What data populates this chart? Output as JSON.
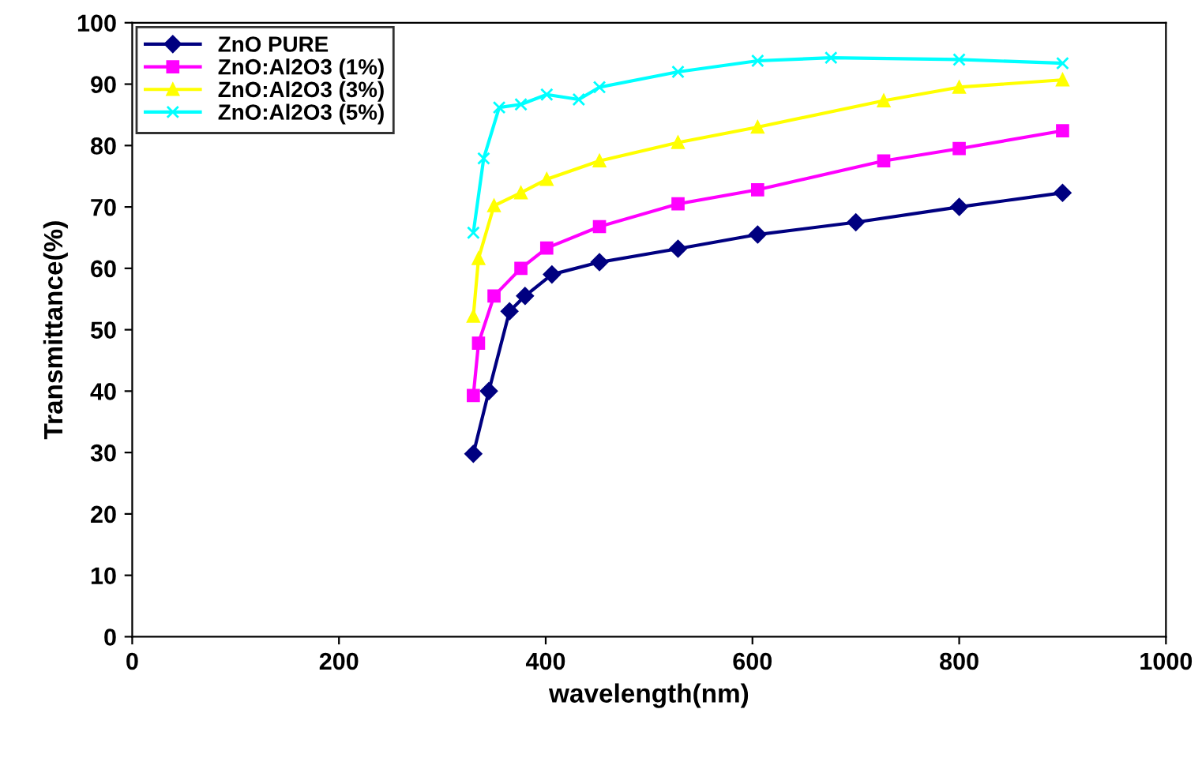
{
  "chart_data": {
    "type": "line",
    "xlabel": "wavelength(nm)",
    "ylabel": "Transmittance(%)",
    "xlim": [
      0,
      1000
    ],
    "xticks": [
      0,
      200,
      400,
      600,
      800,
      1000
    ],
    "ylim": [
      0,
      100
    ],
    "yticks": [
      0,
      10,
      20,
      30,
      40,
      50,
      60,
      70,
      80,
      90,
      100
    ],
    "grid": false,
    "legend": "top left",
    "series": [
      {
        "name": "ZnO PURE",
        "color": "#000080",
        "marker": "diamond",
        "x": [
          330,
          345,
          365,
          380,
          406,
          452,
          528,
          605,
          700,
          800,
          900
        ],
        "values": [
          29.8,
          40,
          53,
          55.5,
          59,
          61,
          63.2,
          65.5,
          67.5,
          70,
          72.3
        ]
      },
      {
        "name": "ZnO:Al2O3 (1%)",
        "color": "#ff00ff",
        "marker": "square",
        "x": [
          330,
          335,
          350,
          376,
          401,
          452,
          528,
          605,
          727,
          800,
          900
        ],
        "values": [
          39.3,
          47.8,
          55.5,
          60,
          63.3,
          66.8,
          70.5,
          72.8,
          77.5,
          79.5,
          82.4
        ]
      },
      {
        "name": "ZnO:Al2O3 (3%)",
        "color": "#ffff00",
        "marker": "triangle",
        "x": [
          330,
          335,
          350,
          376,
          401,
          452,
          528,
          605,
          727,
          800,
          900
        ],
        "values": [
          52.2,
          61.6,
          70.2,
          72.3,
          74.5,
          77.5,
          80.5,
          83,
          87.3,
          89.5,
          90.7
        ]
      },
      {
        "name": "ZnO:Al2O3 (5%)",
        "color": "#00ffff",
        "marker": "cross",
        "x": [
          330,
          340,
          355,
          376,
          401,
          432,
          452,
          528,
          605,
          676,
          800,
          900
        ],
        "values": [
          65.8,
          77.9,
          86.2,
          86.7,
          88.3,
          87.5,
          89.5,
          92,
          93.8,
          94.3,
          94,
          93.4
        ]
      }
    ]
  }
}
